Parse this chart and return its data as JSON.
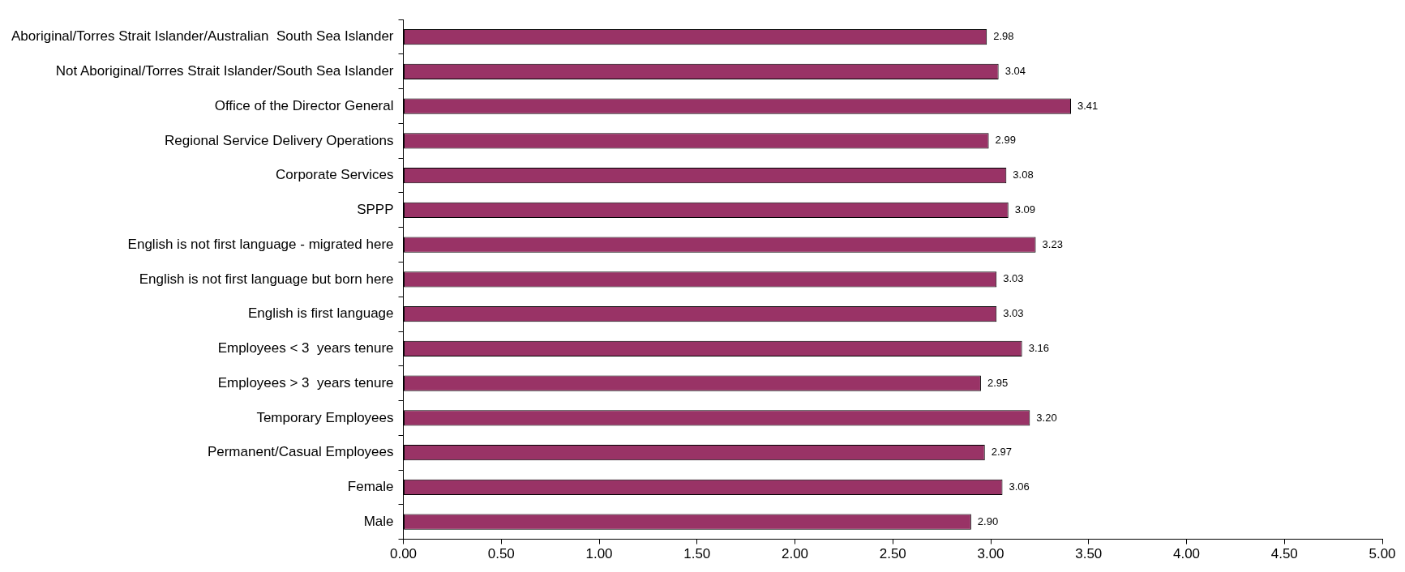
{
  "chart_data": {
    "type": "bar",
    "orientation": "horizontal",
    "categories": [
      "Aboriginal/Torres Strait Islander/Australian  South Sea Islander",
      "Not Aboriginal/Torres Strait Islander/South Sea Islander",
      "Office of the Director General",
      "Regional Service Delivery Operations",
      "Corporate Services",
      "SPPP",
      "English is not first language - migrated here",
      "English is not first language but born here",
      "English is first language",
      "Employees < 3  years tenure",
      "Employees > 3  years tenure",
      "Temporary Employees",
      "Permanent/Casual Employees",
      "Female",
      "Male"
    ],
    "values": [
      2.98,
      3.04,
      3.41,
      2.99,
      3.08,
      3.09,
      3.23,
      3.03,
      3.03,
      3.16,
      2.95,
      3.2,
      2.97,
      3.06,
      2.9
    ],
    "value_labels": [
      "2.98",
      "3.04",
      "3.41",
      "2.99",
      "3.08",
      "3.09",
      "3.23",
      "3.03",
      "3.03",
      "3.16",
      "2.95",
      "3.20",
      "2.97",
      "3.06",
      "2.90"
    ],
    "color": "#993366",
    "xlim": [
      0,
      5
    ],
    "xticks": [
      {
        "value": 0,
        "label": "0.00"
      },
      {
        "value": 0.5,
        "label": "0.50"
      },
      {
        "value": 1,
        "label": "1.00"
      },
      {
        "value": 1.5,
        "label": "1.50"
      },
      {
        "value": 2,
        "label": "2.00"
      },
      {
        "value": 2.5,
        "label": "2.50"
      },
      {
        "value": 3,
        "label": "3.00"
      },
      {
        "value": 3.5,
        "label": "3.50"
      },
      {
        "value": 4,
        "label": "4.00"
      },
      {
        "value": 4.5,
        "label": "4.50"
      },
      {
        "value": 5,
        "label": "5.00"
      }
    ],
    "grid": false,
    "legend": false
  }
}
